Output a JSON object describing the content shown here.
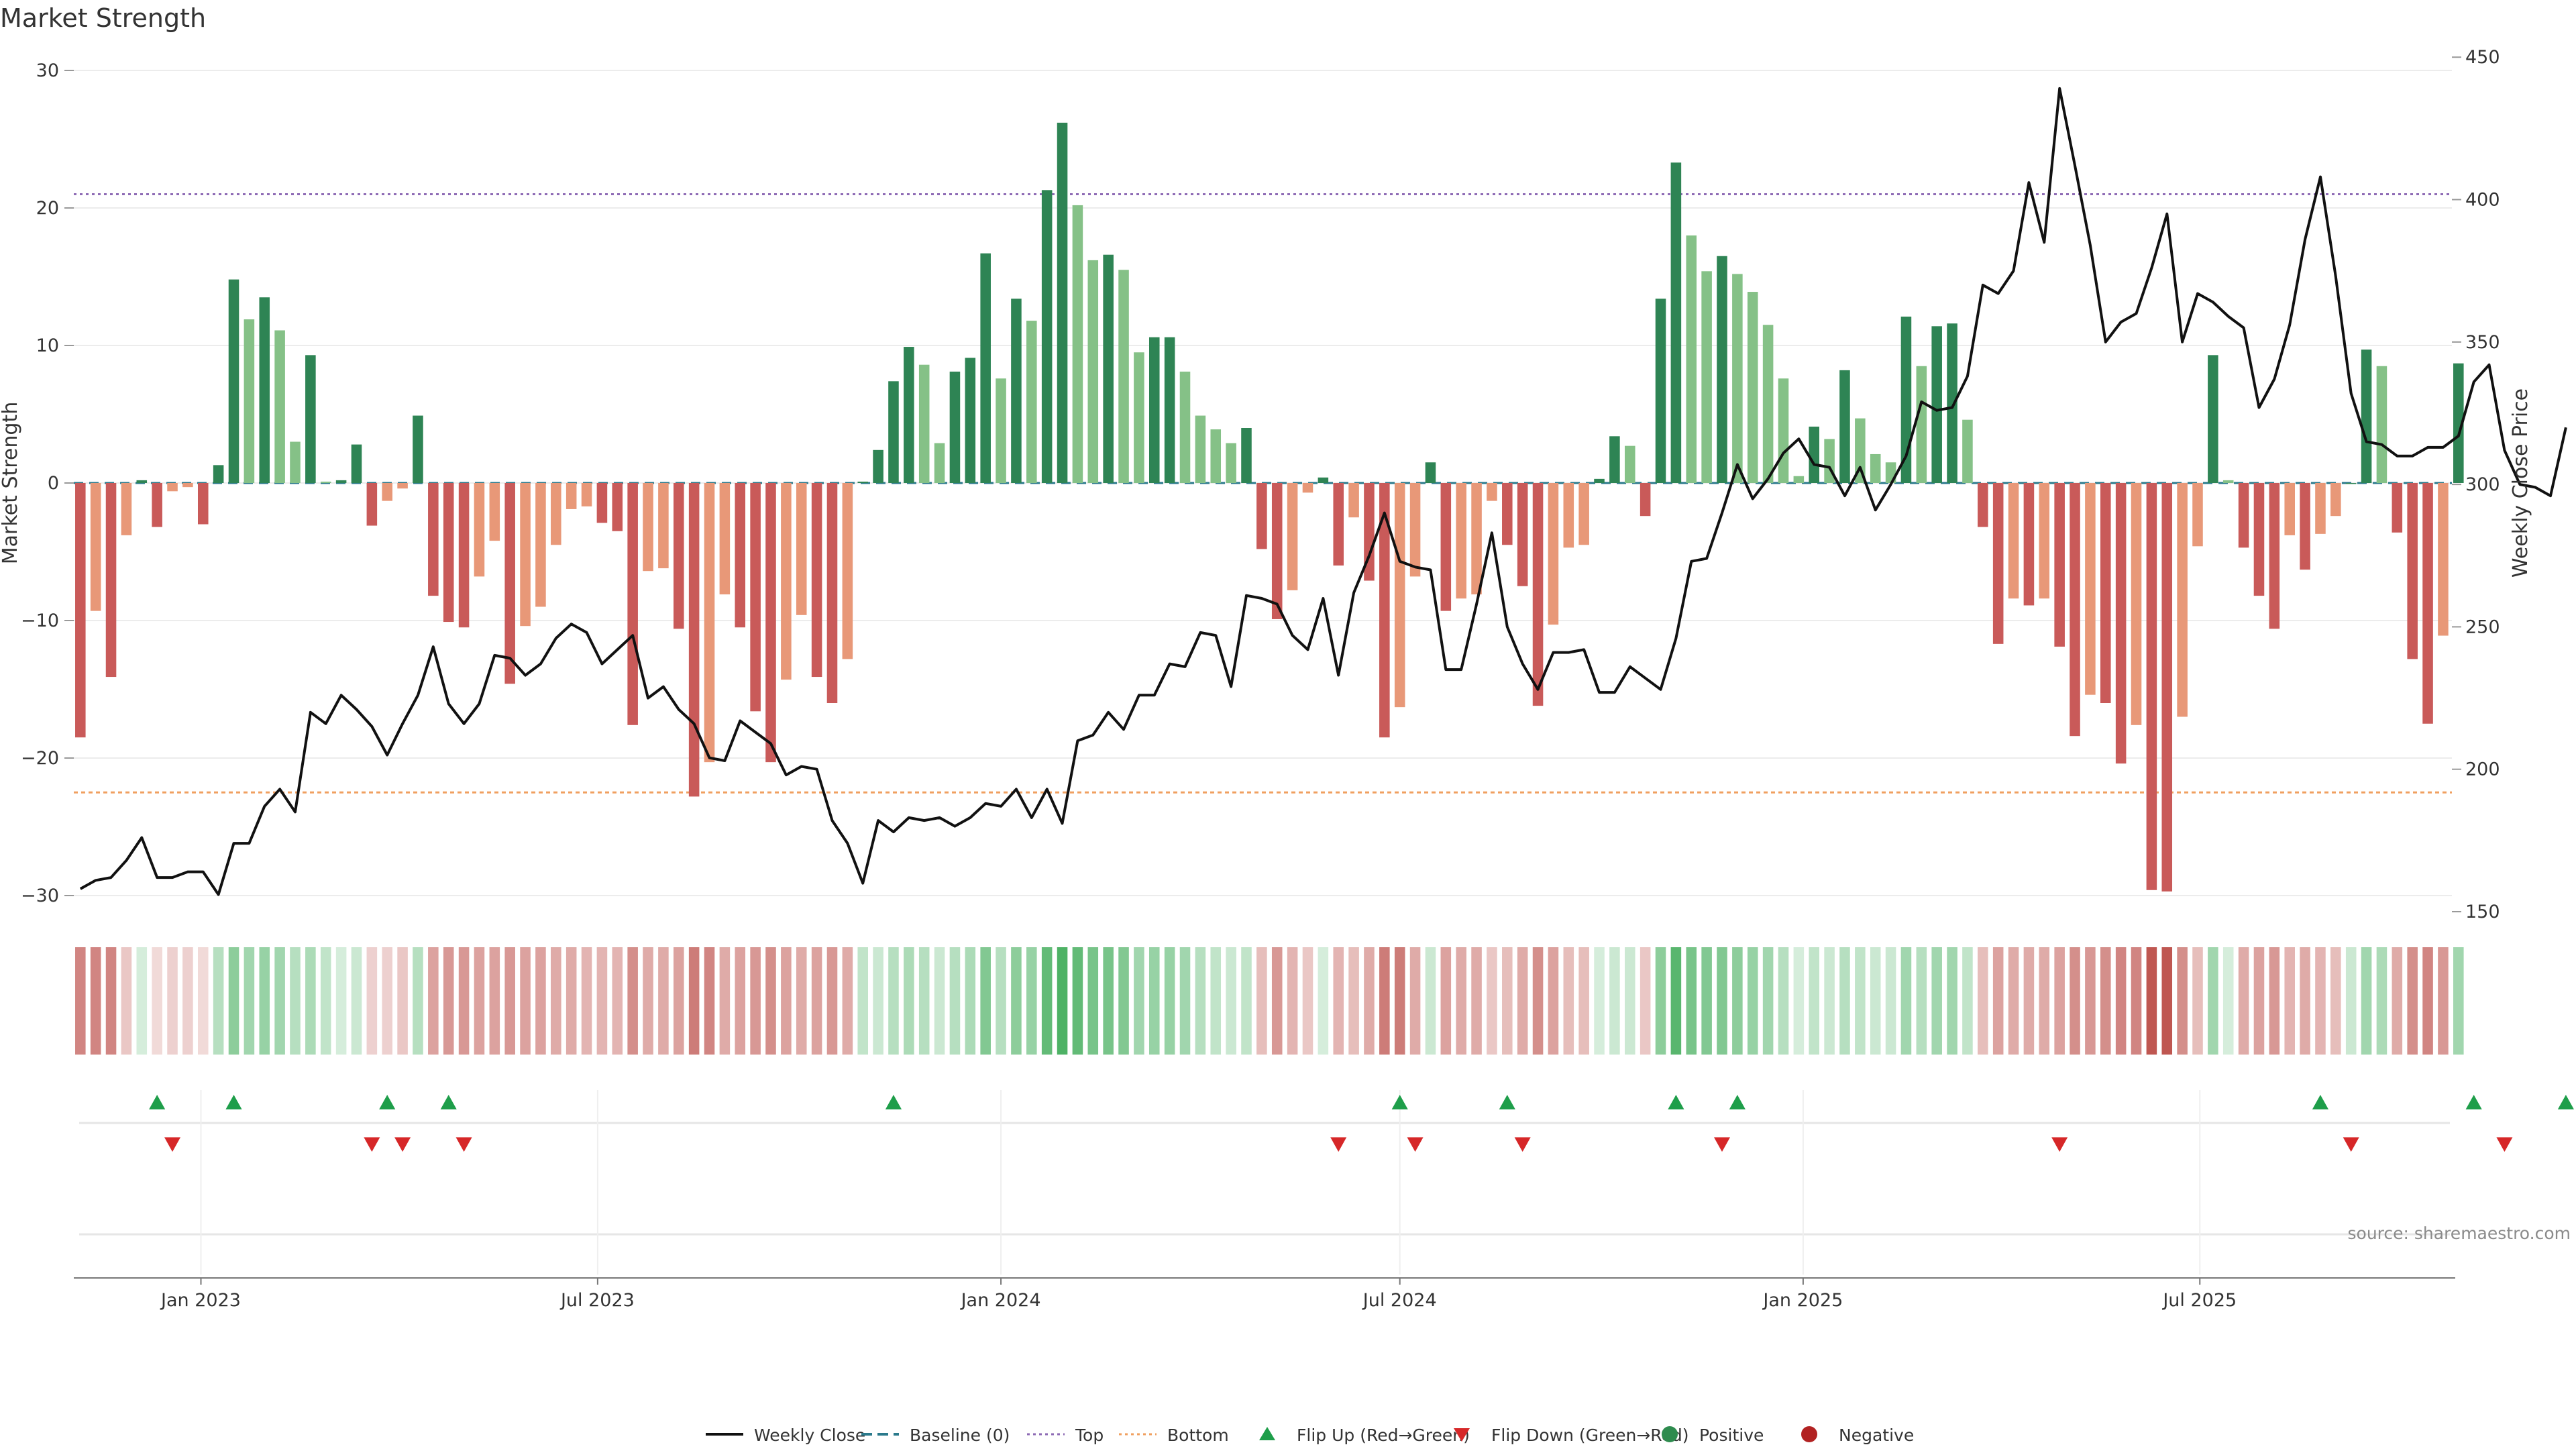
{
  "chart_data": {
    "type": "bar",
    "title": "Market Strength",
    "ylabel": "Market Strength",
    "y2label": "Weekly Close Price",
    "ylim": [
      -32,
      32
    ],
    "yticks": [
      -30,
      -20,
      -10,
      0,
      10,
      20,
      30
    ],
    "y2lim": [
      146,
      455
    ],
    "y2ticks": [
      150,
      200,
      250,
      300,
      350,
      400,
      450
    ],
    "date_start": "2022-11-07",
    "xlim_dates": [
      "2022-11-04",
      "2025-10-24"
    ],
    "xticks": [
      {
        "label": "Jan 2023",
        "date": "2023-01-01"
      },
      {
        "label": "Jul 2023",
        "date": "2023-07-01"
      },
      {
        "label": "Jan 2024",
        "date": "2024-01-01"
      },
      {
        "label": "Jul 2024",
        "date": "2024-07-01"
      },
      {
        "label": "Jan 2025",
        "date": "2025-01-01"
      },
      {
        "label": "Jul 2025",
        "date": "2025-07-01"
      }
    ],
    "top_level": 21,
    "bottom_level": -22.5,
    "strength": [
      -18.5,
      -9.3,
      -14.1,
      -3.8,
      0.2,
      -3.2,
      -0.6,
      -0.3,
      -3,
      1.3,
      14.8,
      11.9,
      13.5,
      11.1,
      3,
      9.3,
      0.1,
      0.2,
      2.8,
      -3.1,
      -1.3,
      -0.4,
      4.9,
      -8.2,
      -10.1,
      -10.5,
      -6.8,
      -4.2,
      -14.6,
      -10.4,
      -9,
      -4.5,
      -1.9,
      -1.7,
      -2.9,
      -3.5,
      -17.6,
      -6.4,
      -6.2,
      -10.6,
      -22.8,
      -20.3,
      -8.1,
      -10.5,
      -16.6,
      -20.3,
      -14.3,
      -9.6,
      -14.1,
      -16,
      -12.8,
      0.1,
      2.4,
      7.4,
      9.9,
      8.6,
      2.9,
      8.1,
      9.1,
      16.7,
      7.6,
      13.4,
      11.8,
      21.3,
      26.2,
      20.2,
      16.2,
      16.6,
      15.5,
      9.5,
      10.6,
      10.6,
      8.1,
      4.9,
      3.9,
      2.9,
      4,
      -4.8,
      -9.9,
      -7.8,
      -0.7,
      0.4,
      -6,
      -2.5,
      -7.1,
      -18.5,
      -16.3,
      -6.8,
      1.5,
      -9.3,
      -8.4,
      -8.1,
      -1.3,
      -4.5,
      -7.5,
      -16.2,
      -10.3,
      -4.7,
      -4.5,
      0.3,
      3.4,
      2.7,
      -2.4,
      13.4,
      23.3,
      18,
      15.4,
      16.5,
      15.2,
      13.9,
      11.5,
      7.6,
      0.5,
      4.1,
      3.2,
      8.2,
      4.7,
      2.1,
      1.5,
      12.1,
      8.5,
      11.4,
      11.6,
      4.6,
      -3.2,
      -11.7,
      -8.4,
      -8.9,
      -8.4,
      -11.9,
      -18.4,
      -15.4,
      -16,
      -20.4,
      -17.6,
      -29.6,
      -29.7,
      -17,
      -4.6,
      9.3,
      0.2,
      -4.7,
      -8.2,
      -10.6,
      -3.8,
      -6.3,
      -3.7,
      -2.4,
      0,
      9.7,
      8.5,
      -3.6,
      -12.8,
      -17.5,
      -11.1,
      8.7
    ],
    "close": [
      158,
      161,
      162,
      168,
      176,
      162,
      162,
      164,
      164,
      156,
      174,
      174,
      187,
      193,
      185,
      220,
      216,
      226,
      221,
      215,
      205,
      216,
      226,
      243,
      223,
      216,
      223,
      240,
      239,
      233,
      237,
      246,
      251,
      248,
      237,
      242,
      247,
      225,
      229,
      221,
      216,
      204,
      203,
      217,
      213,
      209,
      198,
      201,
      200,
      182,
      174,
      160,
      182,
      178,
      183,
      182,
      183,
      180,
      183,
      188,
      187,
      193,
      183,
      193,
      181,
      210,
      212,
      220,
      214,
      226,
      226,
      237,
      236,
      248,
      247,
      229,
      261,
      260,
      258,
      247,
      242,
      260,
      233,
      262,
      275,
      290,
      273,
      271,
      270,
      235,
      235,
      258,
      283,
      250,
      237,
      228,
      241,
      241,
      242,
      227,
      227,
      236,
      232,
      228,
      246,
      273,
      274,
      290,
      307,
      295,
      302,
      311,
      316,
      307,
      306,
      296,
      306,
      291,
      300,
      310,
      329,
      326,
      327,
      338,
      370,
      367,
      375,
      406,
      385,
      439,
      412,
      384,
      350,
      357,
      360,
      376,
      395,
      350,
      367,
      364,
      359,
      355,
      327,
      337,
      356,
      386,
      408,
      373,
      332,
      315,
      314,
      310,
      310,
      313,
      313,
      317,
      336,
      342,
      312,
      300,
      299,
      296,
      320
    ],
    "heat_intensity": [
      0.65,
      0.65,
      0.65,
      0.3,
      0.2,
      0.2,
      0.25,
      0.25,
      0.2,
      0.35,
      0.55,
      0.45,
      0.5,
      0.45,
      0.35,
      0.4,
      0.3,
      0.2,
      0.25,
      0.25,
      0.25,
      0.3,
      0.35,
      0.5,
      0.55,
      0.55,
      0.5,
      0.5,
      0.55,
      0.5,
      0.5,
      0.45,
      0.45,
      0.4,
      0.4,
      0.4,
      0.6,
      0.45,
      0.45,
      0.5,
      0.7,
      0.65,
      0.45,
      0.5,
      0.55,
      0.6,
      0.5,
      0.45,
      0.5,
      0.55,
      0.45,
      0.3,
      0.25,
      0.35,
      0.4,
      0.35,
      0.25,
      0.35,
      0.4,
      0.6,
      0.35,
      0.55,
      0.5,
      0.75,
      0.85,
      0.75,
      0.65,
      0.65,
      0.6,
      0.45,
      0.5,
      0.5,
      0.45,
      0.35,
      0.3,
      0.25,
      0.3,
      0.35,
      0.55,
      0.4,
      0.3,
      0.2,
      0.4,
      0.35,
      0.45,
      0.7,
      0.7,
      0.45,
      0.25,
      0.5,
      0.45,
      0.45,
      0.3,
      0.35,
      0.45,
      0.6,
      0.5,
      0.35,
      0.35,
      0.2,
      0.25,
      0.25,
      0.3,
      0.55,
      0.8,
      0.65,
      0.6,
      0.6,
      0.55,
      0.5,
      0.45,
      0.35,
      0.2,
      0.3,
      0.25,
      0.35,
      0.3,
      0.25,
      0.25,
      0.45,
      0.35,
      0.45,
      0.45,
      0.3,
      0.35,
      0.5,
      0.45,
      0.45,
      0.45,
      0.5,
      0.6,
      0.55,
      0.6,
      0.65,
      0.65,
      0.9,
      0.9,
      0.6,
      0.35,
      0.45,
      0.2,
      0.45,
      0.5,
      0.55,
      0.4,
      0.45,
      0.4,
      0.35,
      0.25,
      0.45,
      0.4,
      0.45,
      0.6,
      0.65,
      0.55,
      0.45
    ],
    "flip_up_weeks": [
      5,
      10,
      20,
      24,
      53,
      86,
      93,
      104,
      108,
      146,
      156,
      162
    ],
    "flip_down_weeks": [
      6,
      19,
      21,
      25,
      82,
      87,
      94,
      107,
      129,
      148,
      158
    ],
    "legend": [
      {
        "label": "Weekly Close",
        "kind": "line",
        "color": "#111111"
      },
      {
        "label": "Baseline (0)",
        "kind": "dash",
        "color": "#2b7a8c"
      },
      {
        "label": "Top",
        "kind": "dot",
        "color": "#8e6bb5"
      },
      {
        "label": "Bottom",
        "kind": "dot",
        "color": "#f0a060"
      },
      {
        "label": "Flip Up (Red→Green)",
        "kind": "tri-up",
        "color": "#1e9e4a"
      },
      {
        "label": "Flip Down (Green→Red)",
        "kind": "tri-down",
        "color": "#d62728"
      },
      {
        "label": "Positive",
        "kind": "circle",
        "color": "#2e8b4e"
      },
      {
        "label": "Negative",
        "kind": "circle",
        "color": "#b22222"
      }
    ],
    "grid": true,
    "legend_position": "bottom-center",
    "source": "source: sharemaestro.com",
    "colors": {
      "pos_dark": "#2e8454",
      "pos_light": "#85c187",
      "neg_dark": "#c95a59",
      "neg_light": "#e89878",
      "close_line": "#111111",
      "baseline": "#2b7a8c",
      "top_line": "#8e6bb5",
      "bottom_line": "#f0a060"
    }
  }
}
